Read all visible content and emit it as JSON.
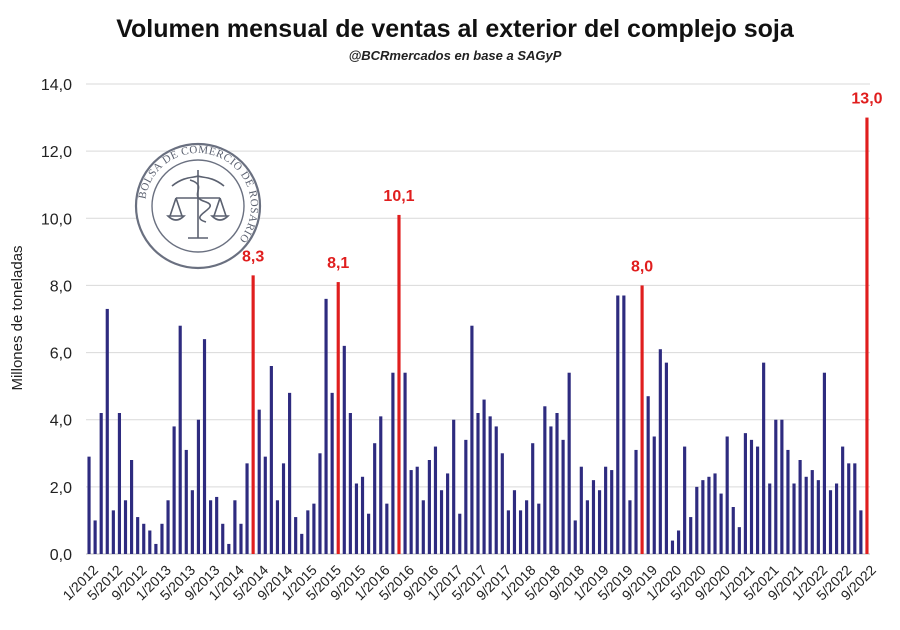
{
  "chart_data": {
    "type": "bar",
    "title": "Volumen mensual de ventas al exterior del complejo soja",
    "subtitle": "@BCRmercados en base a SAGyP",
    "xlabel": "",
    "ylabel": "Millones de toneladas",
    "ylim": [
      0,
      14
    ],
    "yticks": [
      "0,0",
      "2,0",
      "4,0",
      "6,0",
      "8,0",
      "10,0",
      "12,0",
      "14,0"
    ],
    "grid": true,
    "legend": "none",
    "colors": {
      "bar": "#2e2b7f",
      "highlight": "#e01e1e",
      "grid": "#d9d9d9"
    },
    "categories": [
      "1/2012",
      "2/2012",
      "3/2012",
      "4/2012",
      "5/2012",
      "6/2012",
      "7/2012",
      "8/2012",
      "9/2012",
      "10/2012",
      "11/2012",
      "12/2012",
      "1/2013",
      "2/2013",
      "3/2013",
      "4/2013",
      "5/2013",
      "6/2013",
      "7/2013",
      "8/2013",
      "9/2013",
      "10/2013",
      "11/2013",
      "12/2013",
      "1/2014",
      "2/2014",
      "3/2014",
      "4/2014",
      "5/2014",
      "6/2014",
      "7/2014",
      "8/2014",
      "9/2014",
      "10/2014",
      "11/2014",
      "12/2014",
      "1/2015",
      "2/2015",
      "3/2015",
      "4/2015",
      "5/2015",
      "6/2015",
      "7/2015",
      "8/2015",
      "9/2015",
      "10/2015",
      "11/2015",
      "12/2015",
      "1/2016",
      "2/2016",
      "3/2016",
      "4/2016",
      "5/2016",
      "6/2016",
      "7/2016",
      "8/2016",
      "9/2016",
      "10/2016",
      "11/2016",
      "12/2016",
      "1/2017",
      "2/2017",
      "3/2017",
      "4/2017",
      "5/2017",
      "6/2017",
      "7/2017",
      "8/2017",
      "9/2017",
      "10/2017",
      "11/2017",
      "12/2017",
      "1/2018",
      "2/2018",
      "3/2018",
      "4/2018",
      "5/2018",
      "6/2018",
      "7/2018",
      "8/2018",
      "9/2018",
      "10/2018",
      "11/2018",
      "12/2018",
      "1/2019",
      "2/2019",
      "3/2019",
      "4/2019",
      "5/2019",
      "6/2019",
      "7/2019",
      "8/2019",
      "9/2019",
      "10/2019",
      "11/2019",
      "12/2019",
      "1/2020",
      "2/2020",
      "3/2020",
      "4/2020",
      "5/2020",
      "6/2020",
      "7/2020",
      "8/2020",
      "9/2020",
      "10/2020",
      "11/2020",
      "12/2020",
      "1/2021",
      "2/2021",
      "3/2021",
      "4/2021",
      "5/2021",
      "6/2021",
      "7/2021",
      "8/2021",
      "9/2021",
      "10/2021",
      "11/2021",
      "12/2021",
      "1/2022",
      "2/2022",
      "3/2022",
      "4/2022",
      "5/2022",
      "6/2022",
      "7/2022",
      "8/2022",
      "9/2022"
    ],
    "x_tick_labels": [
      "1/2012",
      "5/2012",
      "9/2012",
      "1/2013",
      "5/2013",
      "9/2013",
      "1/2014",
      "5/2014",
      "9/2014",
      "1/2015",
      "5/2015",
      "9/2015",
      "1/2016",
      "5/2016",
      "9/2016",
      "1/2017",
      "5/2017",
      "9/2017",
      "1/2018",
      "5/2018",
      "9/2018",
      "1/2019",
      "5/2019",
      "9/2019",
      "1/2020",
      "5/2020",
      "9/2020",
      "1/2021",
      "5/2021",
      "9/2021",
      "1/2022",
      "5/2022",
      "9/2022"
    ],
    "values": [
      2.9,
      1.0,
      4.2,
      7.3,
      1.3,
      4.2,
      1.6,
      2.8,
      1.1,
      0.9,
      0.7,
      0.3,
      0.9,
      1.6,
      3.8,
      6.8,
      3.1,
      1.9,
      4.0,
      6.4,
      1.6,
      1.7,
      0.9,
      0.3,
      1.6,
      0.9,
      2.7,
      8.3,
      4.3,
      2.9,
      5.6,
      1.6,
      2.7,
      4.8,
      1.1,
      0.6,
      1.3,
      1.5,
      3.0,
      7.6,
      4.8,
      8.1,
      6.2,
      4.2,
      2.1,
      2.3,
      1.2,
      3.3,
      4.1,
      1.5,
      5.4,
      10.1,
      5.4,
      2.5,
      2.6,
      1.6,
      2.8,
      3.2,
      1.9,
      2.4,
      4.0,
      1.2,
      3.4,
      6.8,
      4.2,
      4.6,
      4.1,
      3.8,
      3.0,
      1.3,
      1.9,
      1.3,
      1.6,
      3.3,
      1.5,
      4.4,
      3.8,
      4.2,
      3.4,
      5.4,
      1.0,
      2.6,
      1.6,
      2.2,
      1.9,
      2.6,
      2.5,
      7.7,
      7.7,
      1.6,
      3.1,
      8.0,
      4.7,
      3.5,
      6.1,
      5.7,
      0.4,
      0.7,
      3.2,
      1.1,
      2.0,
      2.2,
      2.3,
      2.4,
      1.8,
      3.5,
      1.4,
      0.8,
      3.6,
      3.4,
      3.2,
      5.7,
      2.1,
      4.0,
      4.0,
      3.1,
      2.1,
      2.8,
      2.3,
      2.5,
      2.2,
      5.4,
      1.9,
      2.1,
      3.2,
      2.7,
      2.7,
      1.3,
      13.0
    ],
    "highlights": [
      {
        "category": "4/2014",
        "value": 8.3,
        "label": "8,3"
      },
      {
        "category": "6/2015",
        "value": 8.1,
        "label": "8,1"
      },
      {
        "category": "4/2016",
        "value": 10.1,
        "label": "10,1"
      },
      {
        "category": "8/2019",
        "value": 8.0,
        "label": "8,0"
      },
      {
        "category": "9/2022",
        "value": 13.0,
        "label": "13,0"
      }
    ]
  },
  "seal": {
    "text": "BOLSA DE COMERCIO DE ROSARIO",
    "icon": "caduceus-scales-icon"
  }
}
